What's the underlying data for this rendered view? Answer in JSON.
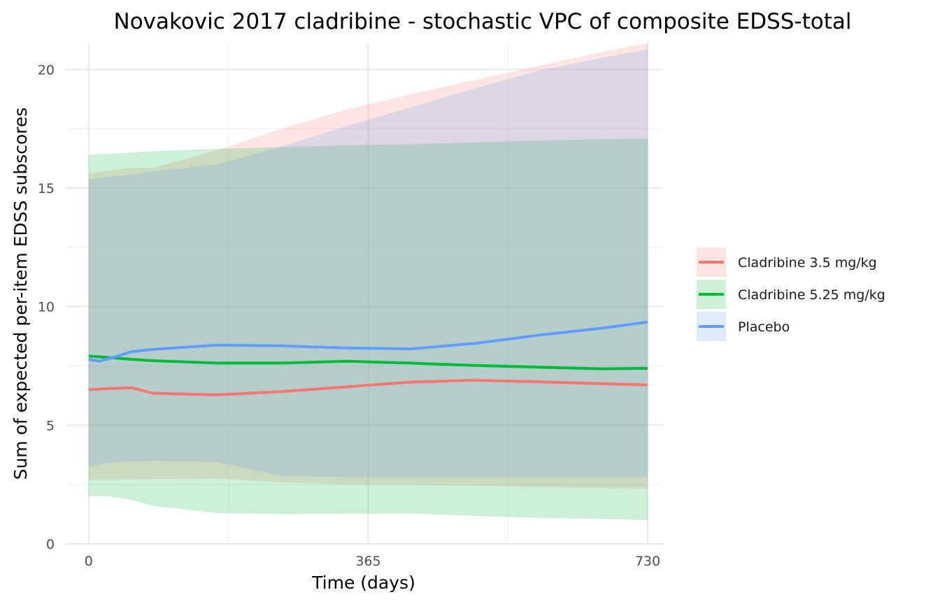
{
  "chart_data": {
    "type": "line",
    "title": "Novakovic 2017 cladribine - stochastic VPC of composite EDSS-total",
    "xlabel": "Time (days)",
    "ylabel": "Sum of expected per-item EDSS subscores",
    "xlim": [
      -30,
      750
    ],
    "ylim": [
      0,
      21.1
    ],
    "x_ticks": [
      0,
      365,
      730
    ],
    "y_ticks": [
      0,
      5,
      10,
      15,
      20
    ],
    "x_tick_labels": [
      "0",
      "365",
      "730"
    ],
    "y_tick_labels": [
      "0",
      "5",
      "10",
      "15",
      "20"
    ],
    "grid": true,
    "legend_position": "right",
    "series": [
      {
        "name": "Cladribine 3.5 mg/kg",
        "color": "#F8766D",
        "x": [
          0,
          28,
          56,
          84,
          168,
          252,
          336,
          420,
          504,
          588,
          672,
          730
        ],
        "median": [
          6.5,
          6.55,
          6.58,
          6.35,
          6.28,
          6.42,
          6.62,
          6.82,
          6.9,
          6.83,
          6.75,
          6.7
        ],
        "lower": [
          2.7,
          2.7,
          2.72,
          2.73,
          2.75,
          2.6,
          2.5,
          2.48,
          2.45,
          2.4,
          2.35,
          2.32
        ],
        "upper": [
          15.6,
          15.75,
          15.85,
          15.85,
          16.6,
          17.5,
          18.3,
          18.95,
          19.55,
          20.15,
          20.75,
          21.1
        ]
      },
      {
        "name": "Cladribine 5.25 mg/kg",
        "color": "#00BA38",
        "x": [
          0,
          28,
          56,
          84,
          168,
          252,
          336,
          420,
          504,
          588,
          672,
          730
        ],
        "median": [
          7.92,
          7.85,
          7.78,
          7.72,
          7.62,
          7.62,
          7.7,
          7.62,
          7.52,
          7.45,
          7.38,
          7.4
        ],
        "lower": [
          2.0,
          2.0,
          1.85,
          1.6,
          1.3,
          1.25,
          1.27,
          1.28,
          1.18,
          1.1,
          1.05,
          1.0
        ],
        "upper": [
          16.4,
          16.45,
          16.5,
          16.55,
          16.65,
          16.72,
          16.8,
          16.85,
          16.92,
          17.0,
          17.06,
          17.1
        ]
      },
      {
        "name": "Placebo",
        "color": "#619CFF",
        "x": [
          0,
          14,
          28,
          56,
          84,
          168,
          252,
          336,
          420,
          504,
          588,
          672,
          730
        ],
        "median": [
          7.78,
          7.7,
          7.82,
          8.1,
          8.2,
          8.38,
          8.35,
          8.26,
          8.22,
          8.45,
          8.8,
          9.1,
          9.35
        ],
        "lower": [
          3.25,
          3.35,
          3.43,
          3.48,
          3.5,
          3.45,
          2.85,
          2.82,
          2.82,
          2.82,
          2.82,
          2.82,
          2.82
        ],
        "upper": [
          15.35,
          15.42,
          15.48,
          15.55,
          15.7,
          16.0,
          16.75,
          17.6,
          18.4,
          19.2,
          19.95,
          20.5,
          20.85
        ]
      }
    ]
  }
}
